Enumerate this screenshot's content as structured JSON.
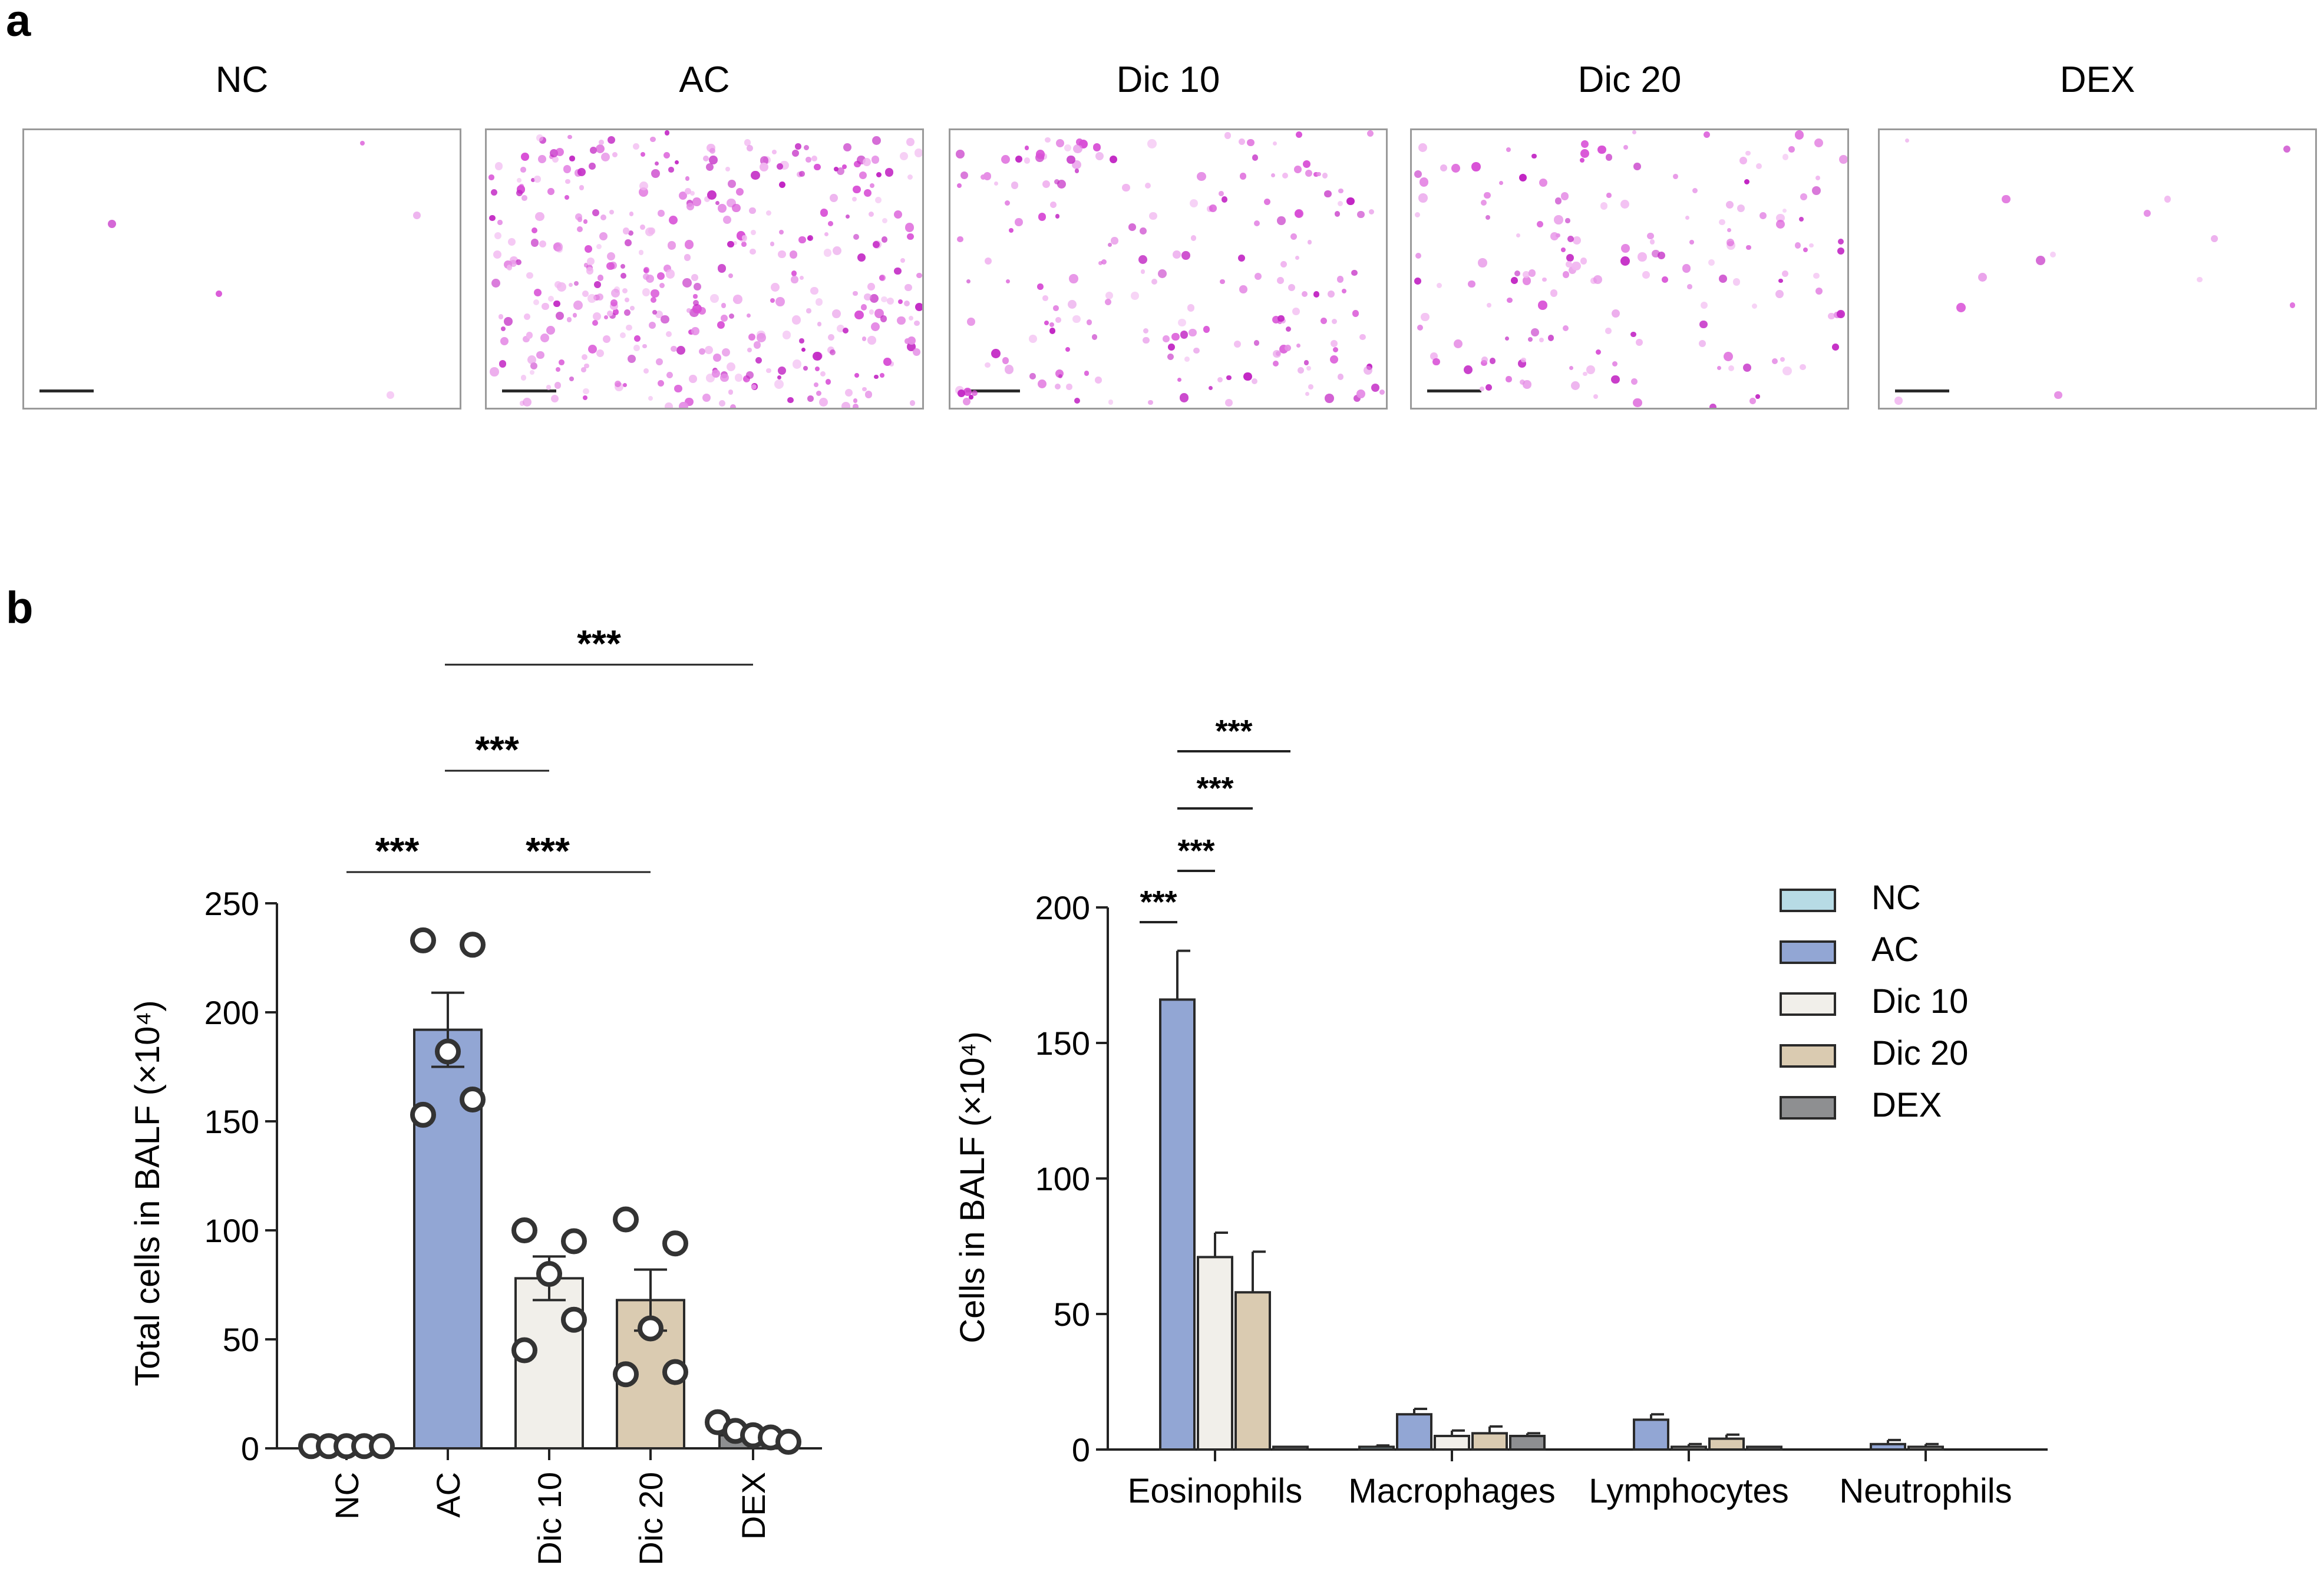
{
  "panel_a": {
    "letter": "a",
    "images": [
      {
        "title": "NC",
        "density": 5,
        "seed": 11
      },
      {
        "title": "AC",
        "density": 420,
        "seed": 23
      },
      {
        "title": "Dic 10",
        "density": 200,
        "seed": 37
      },
      {
        "title": "Dic 20",
        "density": 170,
        "seed": 53
      },
      {
        "title": "DEX",
        "density": 14,
        "seed": 71
      }
    ],
    "stain_colors": [
      "#e58de6",
      "#d84fd6",
      "#f1b6f0",
      "#c226c4"
    ]
  },
  "panel_b": {
    "letter": "b"
  },
  "chart_data": [
    {
      "type": "bar",
      "title": "",
      "xlabel": "",
      "ylabel": "Total cells in BALF (×10⁴)",
      "ylim": [
        0,
        250
      ],
      "yticks": [
        "0",
        "50",
        "100",
        "150",
        "200",
        "250"
      ],
      "categories": [
        "NC",
        "AC",
        "Dic 10",
        "Dic 20",
        "DEX"
      ],
      "values": [
        1,
        192,
        78,
        68,
        6
      ],
      "sem": [
        0.5,
        17,
        10,
        14,
        2
      ],
      "points": [
        [
          1,
          1,
          1,
          1,
          1
        ],
        [
          233,
          231,
          182,
          160,
          153
        ],
        [
          100,
          95,
          80,
          59,
          45
        ],
        [
          105,
          94,
          55,
          35,
          34
        ],
        [
          12,
          8,
          6,
          5,
          3
        ]
      ],
      "colors": [
        "#b7dbe5",
        "#92a6d4",
        "#f1efea",
        "#dacbb1",
        "#8e8f91"
      ],
      "significance": [
        {
          "from": "NC",
          "to": "AC",
          "label": "***"
        },
        {
          "from": "AC",
          "to": "Dic 20",
          "label": "***"
        },
        {
          "from": "AC",
          "to": "Dic 10",
          "label": "***"
        },
        {
          "from": "AC",
          "to": "DEX",
          "label": "***"
        }
      ]
    },
    {
      "type": "bar",
      "title": "",
      "xlabel": "",
      "ylabel": "Cells in BALF (×10⁴)",
      "ylim": [
        0,
        200
      ],
      "yticks": [
        "0",
        "50",
        "100",
        "150",
        "200"
      ],
      "categories": [
        "Eosinophils",
        "Macrophages",
        "Lymphocytes",
        "Neutrophils"
      ],
      "series": [
        {
          "name": "NC",
          "color": "#b7dbe5",
          "values": [
            0,
            1,
            0,
            0
          ],
          "sem": [
            0,
            0.5,
            0,
            0
          ]
        },
        {
          "name": "AC",
          "color": "#92a6d4",
          "values": [
            166,
            13,
            11,
            2
          ],
          "sem": [
            18,
            2,
            2,
            1.5
          ]
        },
        {
          "name": "Dic 10",
          "color": "#f1efea",
          "values": [
            71,
            5,
            1,
            1
          ],
          "sem": [
            9,
            2,
            1,
            1
          ]
        },
        {
          "name": "Dic 20",
          "color": "#dacbb1",
          "values": [
            58,
            6,
            4,
            0
          ],
          "sem": [
            15,
            2.5,
            1.5,
            0
          ]
        },
        {
          "name": "DEX",
          "color": "#8e8f91",
          "values": [
            1,
            5,
            1,
            0
          ],
          "sem": [
            0,
            1,
            0,
            0
          ]
        }
      ],
      "legend_position": "top-right",
      "significance": [
        {
          "category": "Eosinophils",
          "from": "NC",
          "to": "AC",
          "label": "***"
        },
        {
          "category": "Eosinophils",
          "from": "AC",
          "to": "Dic 10",
          "label": "***"
        },
        {
          "category": "Eosinophils",
          "from": "AC",
          "to": "Dic 20",
          "label": "***"
        },
        {
          "category": "Eosinophils",
          "from": "AC",
          "to": "DEX",
          "label": "***"
        }
      ]
    }
  ]
}
